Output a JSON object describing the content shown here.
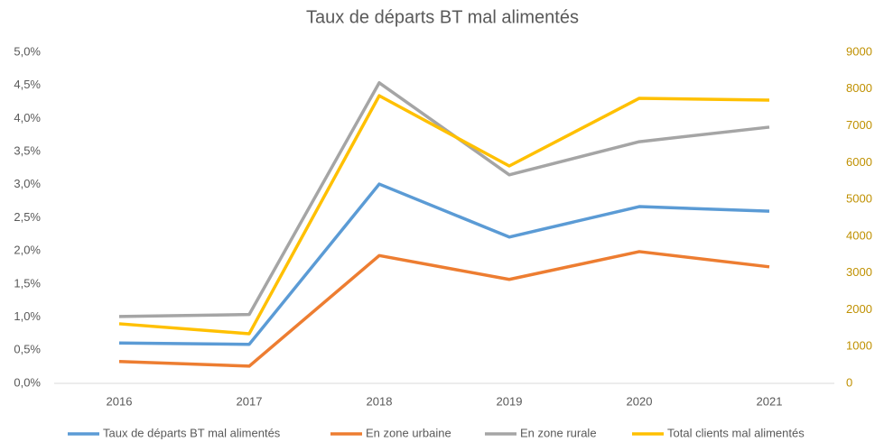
{
  "chart_data": {
    "type": "line",
    "title": "Taux de départs BT mal alimentés",
    "categories": [
      "2016",
      "2017",
      "2018",
      "2019",
      "2020",
      "2021"
    ],
    "series": [
      {
        "name": "Taux de départs BT mal alimentés",
        "color": "#5b9bd5",
        "values": [
          0.61,
          0.59,
          3.01,
          2.21,
          2.67,
          2.6
        ]
      },
      {
        "name": "En zone urbaine",
        "color": "#ed7d31",
        "values": [
          0.33,
          0.26,
          1.93,
          1.57,
          1.99,
          1.76
        ]
      },
      {
        "name": "En zone rurale",
        "color": "#a5a5a5",
        "values": [
          1.01,
          1.04,
          4.54,
          3.15,
          3.65,
          3.87
        ]
      },
      {
        "name": "Total clients mal alimentés",
        "color": "#ffc000",
        "axis": "y2",
        "values": [
          1620,
          1350,
          7820,
          5910,
          7750,
          7700
        ]
      }
    ],
    "ylim": [
      0,
      5
    ],
    "yticks": [
      {
        "value": 0,
        "label": "0,0%"
      },
      {
        "value": 0.5,
        "label": "0,5%"
      },
      {
        "value": 1,
        "label": "1,0%"
      },
      {
        "value": 1.5,
        "label": "1,5%"
      },
      {
        "value": 2,
        "label": "2,0%"
      },
      {
        "value": 2.5,
        "label": "2,5%"
      },
      {
        "value": 3,
        "label": "3,0%"
      },
      {
        "value": 3.5,
        "label": "3,5%"
      },
      {
        "value": 4,
        "label": "4,0%"
      },
      {
        "value": 4.5,
        "label": "4,5%"
      },
      {
        "value": 5,
        "label": "5,0%"
      }
    ],
    "y2lim": [
      0,
      9000
    ],
    "y2ticks": [
      0,
      1000,
      2000,
      3000,
      4000,
      5000,
      6000,
      7000,
      8000,
      9000
    ],
    "y2color": "#bf9000",
    "grid": false,
    "legend": "bottom"
  }
}
